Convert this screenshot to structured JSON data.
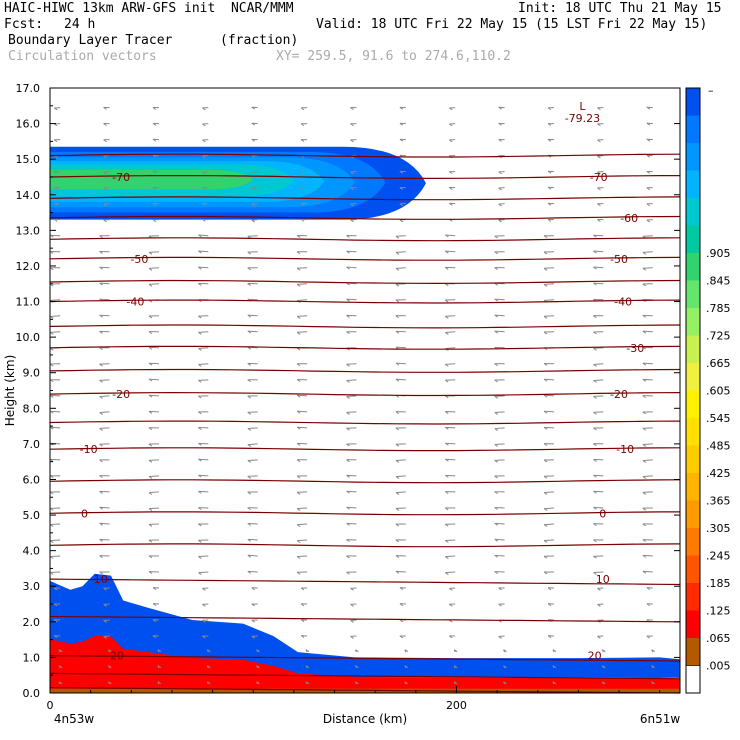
{
  "header": {
    "title": "HAIC-HIWC 13km ARW-GFS init  NCAR/MMM",
    "init": "Init: 18 UTC Thu 21 May 15",
    "fcst_label": "Fcst:",
    "fcst_value": "24 h",
    "valid": "Valid: 18 UTC Fri 22 May 15 (15 LST Fri 22 May 15)",
    "field_name": "Boundary Layer Tracer",
    "field_units": "(fraction)",
    "overlay": "Circulation vectors",
    "xsect": "XY= 259.5, 91.6 to 274.6,110.2"
  },
  "colors": {
    "contour": "#7a0000",
    "vector": "#888888",
    "colorbar": [
      "#ffffff",
      "#b35a00",
      "#ff0000",
      "#ff2a00",
      "#ff5500",
      "#ff7a00",
      "#ff9a00",
      "#ffb400",
      "#ffcc00",
      "#ffe000",
      "#fff000",
      "#f0f040",
      "#c8f050",
      "#96f064",
      "#64e66e",
      "#32d26e",
      "#00c8a0",
      "#00c8d2",
      "#00b4ff",
      "#0096ff",
      "#0078ff",
      "#0050f0"
    ]
  },
  "chart_data": {
    "type": "contour",
    "title": "Boundary Layer Tracer",
    "xlabel": "Distance (km)",
    "ylabel": "Height (km)",
    "xlim": [
      0,
      310
    ],
    "ylim": [
      0,
      17
    ],
    "x_ticks": [
      {
        "value": 0,
        "label": "0"
      },
      {
        "value": 200,
        "label": "200"
      }
    ],
    "x_end_labels": {
      "left": "4n53w",
      "right": "6n51w"
    },
    "y_ticks": [
      "0.0",
      "1.0",
      "2.0",
      "3.0",
      "4.0",
      "5.0",
      "6.0",
      "7.0",
      "8.0",
      "9.0",
      "10.0",
      "11.0",
      "12.0",
      "13.0",
      "14.0",
      "15.0",
      "16.0",
      "17.0"
    ],
    "colorbar_labels": [
      ".005",
      ".065",
      ".125",
      ".185",
      ".245",
      ".305",
      ".365",
      ".425",
      ".485",
      ".545",
      ".605",
      ".665",
      ".725",
      ".785",
      ".845",
      ".905"
    ],
    "colorbar_top_label": "–",
    "temperature_contours": [
      {
        "label": "-70",
        "height_km": 14.5,
        "positions_km": [
          35,
          270
        ]
      },
      {
        "label": "-60",
        "height_km": 13.35,
        "positions_km": [
          285
        ]
      },
      {
        "label": "-50",
        "height_km": 12.2,
        "positions_km": [
          44,
          280
        ]
      },
      {
        "label": "-40",
        "height_km": 11.0,
        "positions_km": [
          42,
          282
        ]
      },
      {
        "label": "-30",
        "height_km": 9.7,
        "positions_km": [
          288
        ]
      },
      {
        "label": "-20",
        "height_km": 8.4,
        "positions_km": [
          35,
          280
        ]
      },
      {
        "label": "-10",
        "height_km": 6.85,
        "positions_km": [
          19,
          283
        ]
      },
      {
        "label": "0",
        "height_km": 5.05,
        "positions_km": [
          17,
          272
        ]
      },
      {
        "label": "10",
        "height_km": 3.2,
        "positions_km": [
          25,
          272
        ]
      },
      {
        "label": "20",
        "height_km": 1.05,
        "positions_km": [
          33,
          268
        ]
      }
    ],
    "low_marker": {
      "symbol": "L",
      "value": "-79.23",
      "x_km": 262,
      "height_km": 16.1
    }
  }
}
